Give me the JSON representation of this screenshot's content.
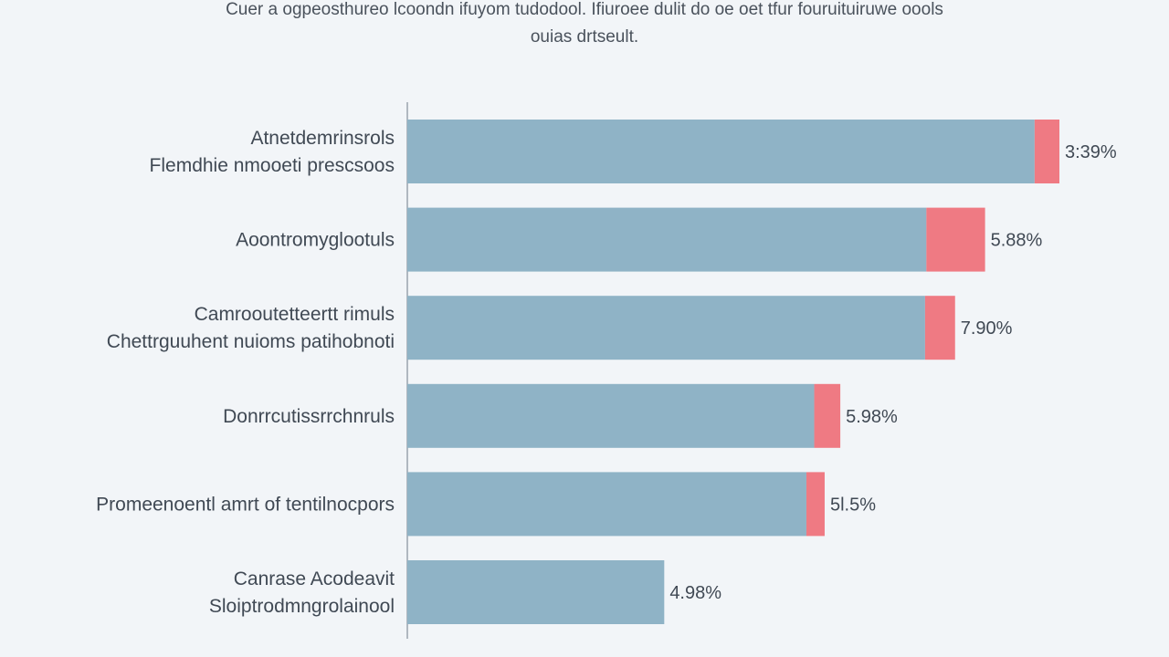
{
  "header": {
    "title_line_1": "Cuer a ogpeosthureo lcoondn ifuyom tudodool. Ifiuroee dulit do oe oet tfur fouruituiruwe oools",
    "title_line_2": "ouias drtseult."
  },
  "colors": {
    "background": "#f2f5f8",
    "bar_main": "#8fb3c6",
    "bar_accent": "#ef7a83",
    "axis": "#9aa4ad",
    "text": "#404954"
  },
  "chart_data": {
    "type": "bar",
    "orientation": "horizontal",
    "stacked": true,
    "title": "Cuer a ogpeosthureo lcoondn ifuyom tudodool. Ifiuroee dulit do oe oet tfur fouruituiruwe oools ouias drtseult.",
    "xlim": [
      0,
      100
    ],
    "grid": false,
    "legend": "none",
    "categories": [
      [
        "Atnetdemrinsrols",
        "Flemdhie nmooeti prescsoos"
      ],
      [
        "Aoontromyglootuls"
      ],
      [
        "Camrooutetteertt rimuls",
        "Chettrguuhent nuioms patihobnoti"
      ],
      [
        "Donrrcutissrrchnruls"
      ],
      [
        "Promeenoentl amrt of tentilnocpors"
      ],
      [
        "Canrase Acodeavit",
        "Sloiptrodmngrolainool"
      ]
    ],
    "series": [
      {
        "color": "#8fb3c6",
        "values": [
          96.2,
          79.6,
          79.4,
          62.4,
          61.2,
          39.4
        ]
      },
      {
        "color": "#ef7a83",
        "values": [
          3.8,
          9.0,
          4.6,
          4.0,
          2.8,
          0
        ]
      }
    ],
    "value_labels": [
      "3:39%",
      "5.88%",
      "7.90%",
      "5.98%",
      "5l.5%",
      "4.98%"
    ]
  }
}
